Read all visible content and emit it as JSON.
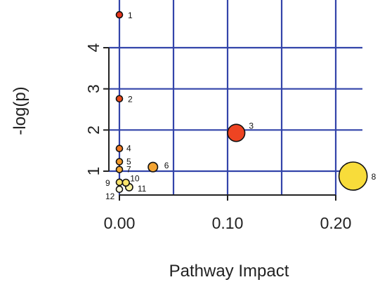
{
  "chart_data": {
    "type": "scatter",
    "title": "",
    "xlabel": "Pathway Impact",
    "ylabel": "-log(p)",
    "x_ticks": [
      0.0,
      0.1,
      0.2
    ],
    "x_tick_labels": [
      "0.00",
      "0.10",
      "0.20"
    ],
    "y_ticks": [
      1,
      2,
      3,
      4
    ],
    "y_tick_labels": [
      "1",
      "2",
      "3",
      "4"
    ],
    "xlim": [
      -0.01,
      0.225
    ],
    "ylim": [
      0.45,
      5.0
    ],
    "grid": true,
    "grid_color": "#3344aa",
    "points": [
      {
        "label": "1",
        "x": 0.0,
        "y": 4.8,
        "color": "#e8341c"
      },
      {
        "label": "2",
        "x": 0.0,
        "y": 2.76,
        "color": "#e84a1c"
      },
      {
        "label": "3",
        "x": 0.108,
        "y": 1.93,
        "color": "#ee4422"
      },
      {
        "label": "4",
        "x": 0.0,
        "y": 1.55,
        "color": "#f07a22"
      },
      {
        "label": "5",
        "x": 0.0,
        "y": 1.23,
        "color": "#f29a2a"
      },
      {
        "label": "6",
        "x": 0.031,
        "y": 1.1,
        "color": "#f3a432"
      },
      {
        "label": "7",
        "x": 0.0,
        "y": 1.04,
        "color": "#f5ac3a"
      },
      {
        "label": "8",
        "x": 0.216,
        "y": 0.88,
        "color": "#f8dc3a"
      },
      {
        "label": "9",
        "x": 0.0,
        "y": 0.73,
        "color": "#fbe46a"
      },
      {
        "label": "10",
        "x": 0.006,
        "y": 0.72,
        "color": "#fbe46a"
      },
      {
        "label": "11",
        "x": 0.009,
        "y": 0.61,
        "color": "#fdf2a0"
      },
      {
        "label": "12",
        "x": 0.0,
        "y": 0.56,
        "color": "#fffbe0"
      }
    ]
  }
}
